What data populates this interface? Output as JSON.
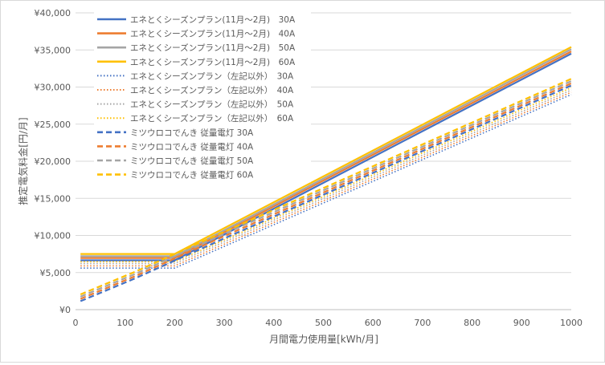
{
  "chart_data": {
    "type": "line",
    "xlabel": "月間電力使用量[kWh/月]",
    "ylabel": "推定電気料金[円/月]",
    "xlim": [
      0,
      1000
    ],
    "ylim": [
      0,
      40000
    ],
    "x_ticks": [
      "0",
      "100",
      "200",
      "300",
      "400",
      "500",
      "600",
      "700",
      "800",
      "900",
      "1000"
    ],
    "y_ticks": [
      "¥0",
      "¥5,000",
      "¥10,000",
      "¥15,000",
      "¥20,000",
      "¥25,000",
      "¥30,000",
      "¥35,000",
      "¥40,000"
    ],
    "grid": "horizontal",
    "legend_position": "top-left",
    "colors": {
      "30A": "#4472c4",
      "40A": "#ed7d31",
      "50A": "#a5a5a5",
      "60A": "#ffc000"
    },
    "series": [
      {
        "name": "エネとくシーズンプラン(11月～2月)　30A",
        "style": "solid",
        "color": "#4472c4",
        "x": [
          10,
          200,
          1000
        ],
        "y": [
          6650,
          6650,
          34500
        ]
      },
      {
        "name": "エネとくシーズンプラン(11月～2月)　40A",
        "style": "solid",
        "color": "#ed7d31",
        "x": [
          10,
          200,
          1000
        ],
        "y": [
          6950,
          6950,
          34800
        ]
      },
      {
        "name": "エネとくシーズンプラン(11月～2月)　50A",
        "style": "solid",
        "color": "#a5a5a5",
        "x": [
          10,
          200,
          1000
        ],
        "y": [
          7200,
          7200,
          35100
        ]
      },
      {
        "name": "エネとくシーズンプラン(11月～2月)　60A",
        "style": "solid",
        "color": "#ffc000",
        "x": [
          10,
          200,
          1000
        ],
        "y": [
          7500,
          7500,
          35400
        ]
      },
      {
        "name": "エネとくシーズンプラン（左記以外）　30A",
        "style": "dotted",
        "color": "#4472c4",
        "x": [
          10,
          200,
          1000
        ],
        "y": [
          5600,
          5600,
          29000
        ]
      },
      {
        "name": "エネとくシーズンプラン（左記以外）　40A",
        "style": "dotted",
        "color": "#ed7d31",
        "x": [
          10,
          200,
          1000
        ],
        "y": [
          5900,
          5900,
          29300
        ]
      },
      {
        "name": "エネとくシーズンプラン（左記以外）　50A",
        "style": "dotted",
        "color": "#a5a5a5",
        "x": [
          10,
          200,
          1000
        ],
        "y": [
          6200,
          6200,
          29600
        ]
      },
      {
        "name": "エネとくシーズンプラン（左記以外）　60A",
        "style": "dotted",
        "color": "#ffc000",
        "x": [
          10,
          200,
          1000
        ],
        "y": [
          6450,
          6450,
          29900
        ]
      },
      {
        "name": "ミツウロコでんき 従量電灯 30A",
        "style": "dashed",
        "color": "#4472c4",
        "x": [
          10,
          120,
          300,
          1000
        ],
        "y": [
          1150,
          4200,
          9600,
          30200
        ]
      },
      {
        "name": "ミツウロコでんき 従量電灯 40A",
        "style": "dashed",
        "color": "#ed7d31",
        "x": [
          10,
          120,
          300,
          1000
        ],
        "y": [
          1450,
          4500,
          9900,
          30500
        ]
      },
      {
        "name": "ミツウロコでんき 従量電灯 50A",
        "style": "dashed",
        "color": "#a5a5a5",
        "x": [
          10,
          120,
          300,
          1000
        ],
        "y": [
          1750,
          4800,
          10200,
          30800
        ]
      },
      {
        "name": "ミツウロコでんき 従量電灯 60A",
        "style": "dashed",
        "color": "#ffc000",
        "x": [
          10,
          120,
          300,
          1000
        ],
        "y": [
          2050,
          5100,
          10500,
          31100
        ]
      }
    ]
  }
}
